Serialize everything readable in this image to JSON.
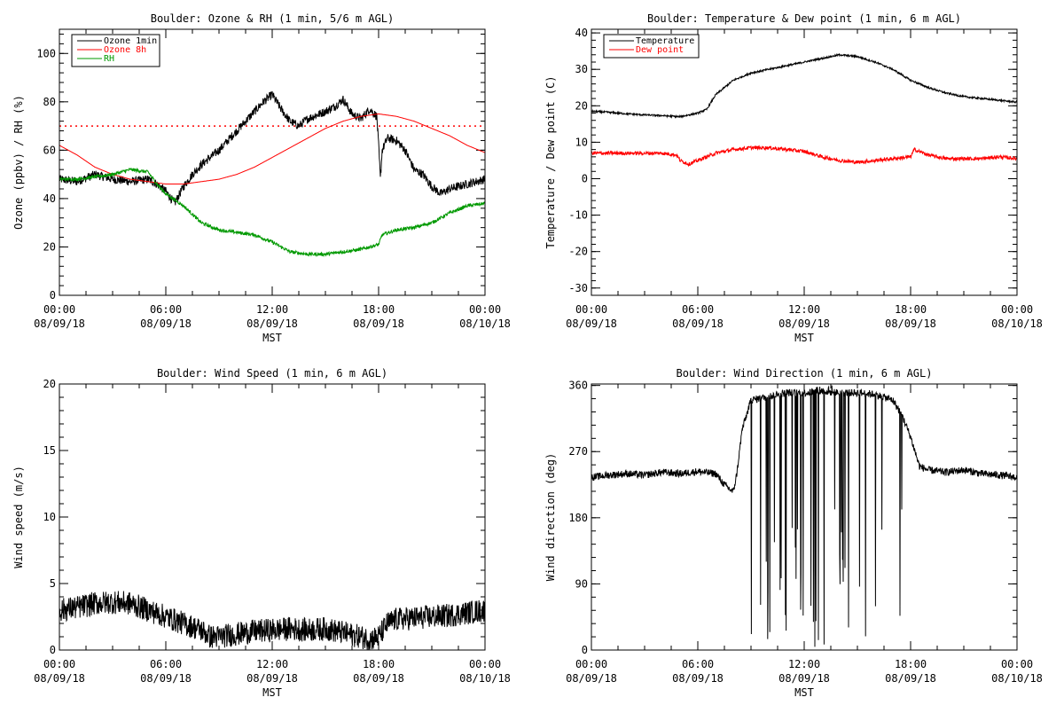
{
  "chart_data": [
    {
      "type": "line",
      "title": "Boulder: Ozone & RH (1 min, 5/6 m AGL)",
      "ylabel": "Ozone (ppbv) / RH (%)",
      "xlabel": "MST",
      "xlim": [
        0,
        24
      ],
      "ylim": [
        0,
        110
      ],
      "x_ticks": [
        {
          "v": 0,
          "l1": "00:00",
          "l2": "08/09/18"
        },
        {
          "v": 6,
          "l1": "06:00",
          "l2": "08/09/18"
        },
        {
          "v": 12,
          "l1": "12:00",
          "l2": "08/09/18"
        },
        {
          "v": 18,
          "l1": "18:00",
          "l2": "08/09/18"
        },
        {
          "v": 24,
          "l1": "00:00",
          "l2": "08/10/18"
        }
      ],
      "y_ticks": [
        0,
        20,
        40,
        60,
        80,
        100
      ],
      "legend_position": "top-left",
      "reference_line": {
        "y": 70,
        "color": "#ff0000",
        "style": "dotted"
      },
      "series": [
        {
          "name": "Ozone 1min",
          "color": "#000000",
          "noise": 1.8,
          "x": [
            0,
            1,
            2,
            3,
            4,
            5,
            5.5,
            6,
            6.5,
            7,
            7.5,
            8,
            9,
            10,
            11,
            11.5,
            12,
            12.5,
            13,
            13.5,
            14,
            15,
            15.5,
            16,
            16.5,
            17,
            17.5,
            17.9,
            18,
            18.1,
            18.2,
            18.5,
            19,
            19.5,
            20,
            20.5,
            21,
            21.5,
            22,
            23,
            24
          ],
          "y": [
            48,
            47,
            50,
            48,
            47,
            48,
            46,
            43,
            38,
            45,
            50,
            54,
            60,
            68,
            76,
            80,
            83,
            77,
            72,
            70,
            73,
            76,
            78,
            81,
            75,
            73,
            77,
            74,
            62,
            48,
            60,
            65,
            64,
            60,
            52,
            50,
            45,
            42,
            44,
            46,
            48
          ]
        },
        {
          "name": "Ozone 8h",
          "color": "#ff0000",
          "noise": 0,
          "x": [
            0,
            1,
            2,
            3,
            4,
            5,
            6,
            7,
            8,
            9,
            10,
            11,
            12,
            13,
            14,
            15,
            16,
            17,
            18,
            19,
            20,
            21,
            22,
            23,
            24
          ],
          "y": [
            62,
            58,
            53,
            50,
            48,
            47,
            46,
            46,
            47,
            48,
            50,
            53,
            57,
            61,
            65,
            69,
            72,
            74,
            75,
            74,
            72,
            69,
            66,
            62,
            59
          ]
        },
        {
          "name": "RH",
          "color": "#009900",
          "noise": 0.7,
          "x": [
            0,
            1,
            2,
            3,
            4,
            5,
            5.5,
            6,
            7,
            8,
            9,
            10,
            11,
            12,
            13,
            14,
            15,
            16,
            17,
            18,
            18.2,
            19,
            20,
            21,
            22,
            23,
            24
          ],
          "y": [
            48,
            48,
            49,
            50,
            52,
            51,
            46,
            42,
            37,
            30,
            27,
            26,
            25,
            22,
            18,
            17,
            17,
            18,
            19,
            21,
            25,
            27,
            28,
            30,
            34,
            37,
            38
          ]
        }
      ]
    },
    {
      "type": "line",
      "title": "Boulder: Temperature & Dew point (1 min, 6 m AGL)",
      "ylabel": "Temperature / Dew point (C)",
      "xlabel": "MST",
      "xlim": [
        0,
        24
      ],
      "ylim": [
        -32,
        41
      ],
      "x_ticks": [
        {
          "v": 0,
          "l1": "00:00",
          "l2": "08/09/18"
        },
        {
          "v": 6,
          "l1": "06:00",
          "l2": "08/09/18"
        },
        {
          "v": 12,
          "l1": "12:00",
          "l2": "08/09/18"
        },
        {
          "v": 18,
          "l1": "18:00",
          "l2": "08/09/18"
        },
        {
          "v": 24,
          "l1": "00:00",
          "l2": "08/10/18"
        }
      ],
      "y_ticks": [
        -30,
        -20,
        -10,
        0,
        10,
        20,
        30,
        40
      ],
      "legend_position": "top-left",
      "series": [
        {
          "name": "Temperature",
          "color": "#000000",
          "noise": 0.25,
          "x": [
            0,
            1,
            2,
            3,
            4,
            5,
            6,
            6.5,
            7,
            8,
            9,
            10,
            11,
            12,
            13,
            14,
            15,
            16,
            17,
            18,
            19,
            20,
            21,
            22,
            23,
            24
          ],
          "y": [
            18.5,
            18.2,
            17.8,
            17.5,
            17.3,
            17,
            18,
            19,
            23,
            27,
            29,
            30,
            31,
            32,
            33,
            34,
            33.5,
            32,
            30,
            27,
            25,
            23.5,
            22.5,
            22,
            21.5,
            21
          ]
        },
        {
          "name": "Dew point",
          "color": "#ff0000",
          "noise": 0.5,
          "x": [
            0,
            1,
            2,
            3,
            4,
            4.8,
            5,
            5.5,
            6,
            6.5,
            7,
            8,
            9,
            10,
            11,
            12,
            13,
            14,
            15,
            16,
            17,
            18,
            18.2,
            19,
            20,
            21,
            22,
            23,
            24
          ],
          "y": [
            7,
            7,
            7,
            7,
            7,
            6.5,
            5,
            4,
            5,
            6,
            7,
            8,
            8.5,
            8.5,
            8,
            7.5,
            6,
            5,
            4.5,
            5,
            5.5,
            6,
            8,
            6.5,
            5.5,
            5.5,
            5.5,
            6,
            5.5
          ]
        }
      ]
    },
    {
      "type": "line",
      "title": "Boulder: Wind Speed (1 min, 6 m AGL)",
      "ylabel": "Wind speed (m/s)",
      "xlabel": "MST",
      "xlim": [
        0,
        24
      ],
      "ylim": [
        0,
        20
      ],
      "x_ticks": [
        {
          "v": 0,
          "l1": "00:00",
          "l2": "08/09/18"
        },
        {
          "v": 6,
          "l1": "06:00",
          "l2": "08/09/18"
        },
        {
          "v": 12,
          "l1": "12:00",
          "l2": "08/09/18"
        },
        {
          "v": 18,
          "l1": "18:00",
          "l2": "08/09/18"
        },
        {
          "v": 24,
          "l1": "00:00",
          "l2": "08/10/18"
        }
      ],
      "y_ticks": [
        0,
        5,
        10,
        15,
        20
      ],
      "series": [
        {
          "name": "",
          "color": "#000000",
          "noise": 0.9,
          "x": [
            0,
            1,
            2,
            3,
            4,
            5,
            6,
            7,
            8,
            8.5,
            9,
            10,
            11,
            12,
            13,
            14,
            15,
            16,
            17,
            17.5,
            18,
            18.5,
            19,
            20,
            21,
            22,
            23,
            24
          ],
          "y": [
            3,
            3.2,
            3.5,
            3.6,
            3.5,
            3,
            2.5,
            2,
            1.5,
            1,
            1,
            1.2,
            1.4,
            1.5,
            1.6,
            1.5,
            1.6,
            1.3,
            1,
            0.8,
            1,
            2,
            2.3,
            2.4,
            2.5,
            2.6,
            2.8,
            3
          ]
        }
      ]
    },
    {
      "type": "line",
      "title": "Boulder: Wind Direction (1 min, 6 m AGL)",
      "ylabel": "Wind direction (deg)",
      "xlabel": "MST",
      "xlim": [
        0,
        24
      ],
      "ylim": [
        0,
        362
      ],
      "x_ticks": [
        {
          "v": 0,
          "l1": "00:00",
          "l2": "08/09/18"
        },
        {
          "v": 6,
          "l1": "06:00",
          "l2": "08/09/18"
        },
        {
          "v": 12,
          "l1": "12:00",
          "l2": "08/09/18"
        },
        {
          "v": 18,
          "l1": "18:00",
          "l2": "08/09/18"
        },
        {
          "v": 24,
          "l1": "00:00",
          "l2": "08/10/18"
        }
      ],
      "y_ticks": [
        0,
        90,
        180,
        270,
        360
      ],
      "series": [
        {
          "name": "",
          "color": "#000000",
          "noise": 5,
          "wrap_window": [
            9,
            17.6
          ],
          "x": [
            0,
            1,
            2,
            3,
            4,
            5,
            6,
            7,
            7.5,
            8,
            8.2,
            8.5,
            9,
            10,
            11,
            12,
            13,
            14,
            15,
            16,
            17,
            17.5,
            18,
            18.5,
            19,
            20,
            21,
            22,
            23,
            24
          ],
          "y": [
            235,
            238,
            240,
            238,
            242,
            240,
            243,
            240,
            225,
            215,
            240,
            300,
            340,
            345,
            350,
            350,
            352,
            350,
            350,
            348,
            340,
            320,
            290,
            250,
            245,
            242,
            245,
            240,
            238,
            235
          ]
        }
      ]
    }
  ]
}
